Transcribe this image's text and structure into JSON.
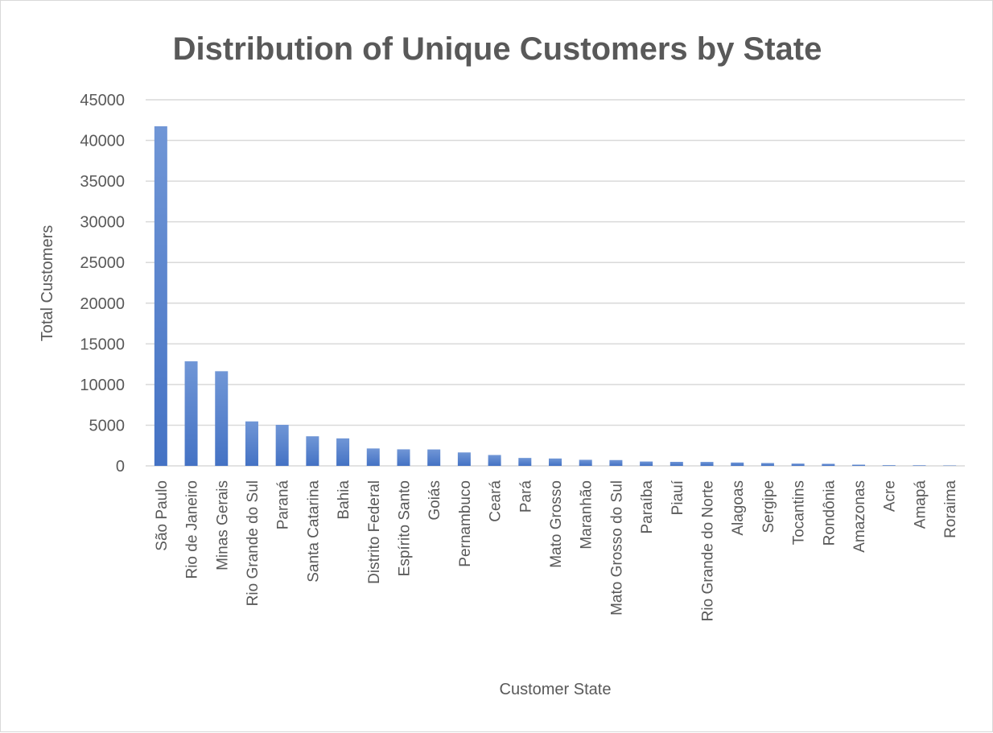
{
  "chart_data": {
    "type": "bar",
    "title": "Distribution of Unique Customers by State",
    "xlabel": "Customer State",
    "ylabel": "Total Customers",
    "ylim": [
      0,
      45000
    ],
    "ytick_step": 5000,
    "grid": true,
    "legend": "none",
    "bar_color": "#4472c4",
    "bar_gradient_top": "#7096d6",
    "categories": [
      "São Paulo",
      "Rio de Janeiro",
      "Minas Gerais",
      "Rio Grande do Sul",
      "Paraná",
      "Santa Catarina",
      "Bahia",
      "Distrito Federal",
      "Espírito Santo",
      "Goiás",
      "Pernambuco",
      "Ceará",
      "Pará",
      "Mato Grosso",
      "Maranhão",
      "Mato Grosso do Sul",
      "Paraíba",
      "Piauí",
      "Rio Grande do Norte",
      "Alagoas",
      "Sergipe",
      "Tocantins",
      "Rondônia",
      "Amazonas",
      "Acre",
      "Amapá",
      "Roraima"
    ],
    "values": [
      41746,
      12852,
      11635,
      5466,
      5045,
      3637,
      3380,
      2140,
      2033,
      2020,
      1652,
      1336,
      975,
      907,
      747,
      715,
      536,
      495,
      485,
      413,
      350,
      280,
      253,
      148,
      81,
      68,
      46
    ]
  }
}
